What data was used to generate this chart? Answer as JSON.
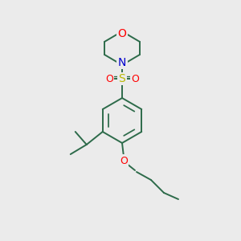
{
  "bg_color": "#ebebeb",
  "bond_color": "#2d6b4a",
  "atom_colors": {
    "O": "#ff0000",
    "N": "#0000cc",
    "S": "#b8b800"
  },
  "line_width": 1.4,
  "fig_size": [
    3.0,
    3.0
  ],
  "dpi": 100,
  "xlim": [
    0,
    300
  ],
  "ylim": [
    0,
    300
  ]
}
